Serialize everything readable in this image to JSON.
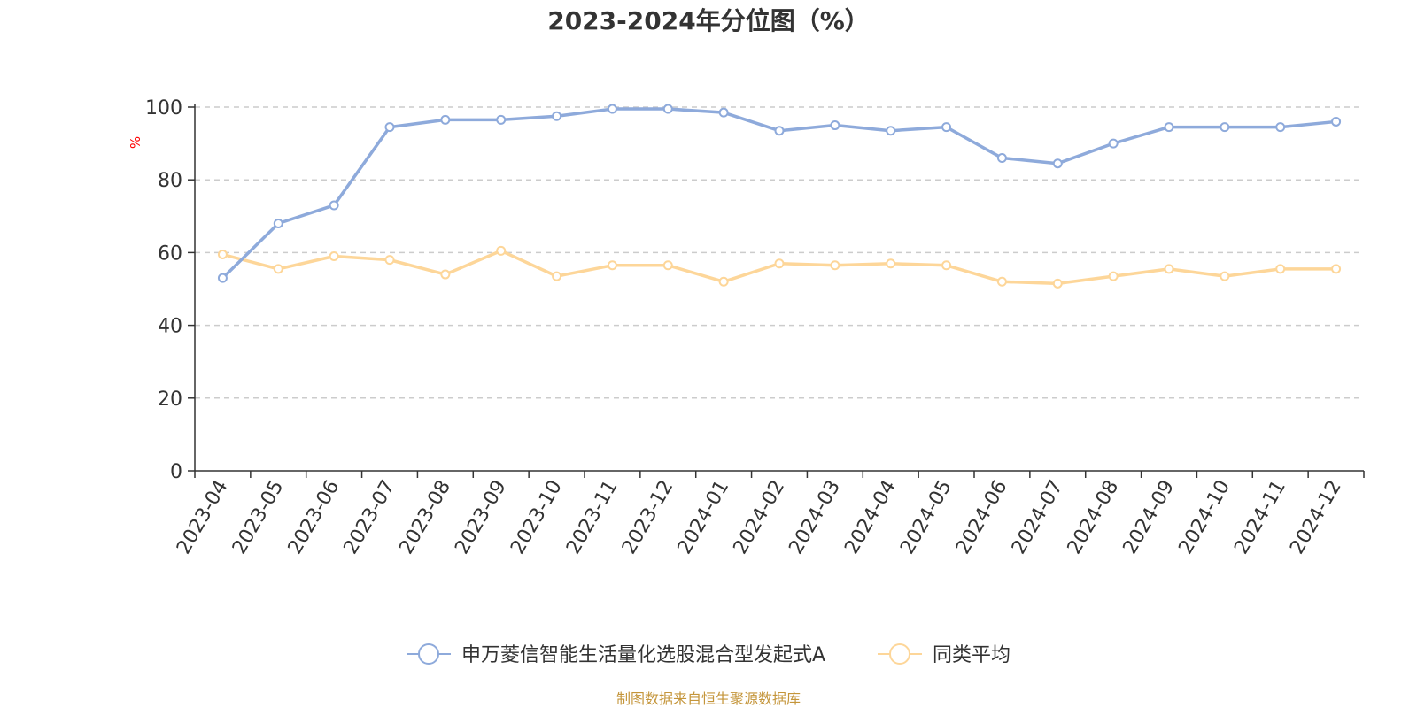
{
  "chart_data": {
    "type": "line",
    "title": "2023-2024年分位图（%）",
    "ylabel": "%",
    "ylim": [
      0,
      100
    ],
    "yticks": [
      0,
      20,
      40,
      60,
      80,
      100
    ],
    "grid": true,
    "legend_position": "bottom-center",
    "categories": [
      "2023-04",
      "2023-05",
      "2023-06",
      "2023-07",
      "2023-08",
      "2023-09",
      "2023-10",
      "2023-11",
      "2023-12",
      "2024-01",
      "2024-02",
      "2024-03",
      "2024-04",
      "2024-05",
      "2024-06",
      "2024-07",
      "2024-08",
      "2024-09",
      "2024-10",
      "2024-11",
      "2024-12"
    ],
    "series": [
      {
        "name": "申万菱信智能生活量化选股混合型发起式A",
        "color": "#8eaadb",
        "values": [
          53,
          68,
          73,
          94.5,
          96.5,
          96.5,
          97.5,
          99.5,
          99.5,
          98.5,
          93.5,
          95,
          93.5,
          94.5,
          86,
          84.5,
          90,
          94.5,
          94.5,
          94.5,
          96
        ]
      },
      {
        "name": "同类平均",
        "color": "#fdd699",
        "values": [
          59.5,
          55.5,
          59,
          58,
          54,
          60.5,
          53.5,
          56.5,
          56.5,
          52,
          57,
          56.5,
          57,
          56.5,
          52,
          51.5,
          53.5,
          55.5,
          53.5,
          55.5,
          55.5
        ]
      }
    ]
  },
  "source_text": "制图数据来自恒生聚源数据库"
}
